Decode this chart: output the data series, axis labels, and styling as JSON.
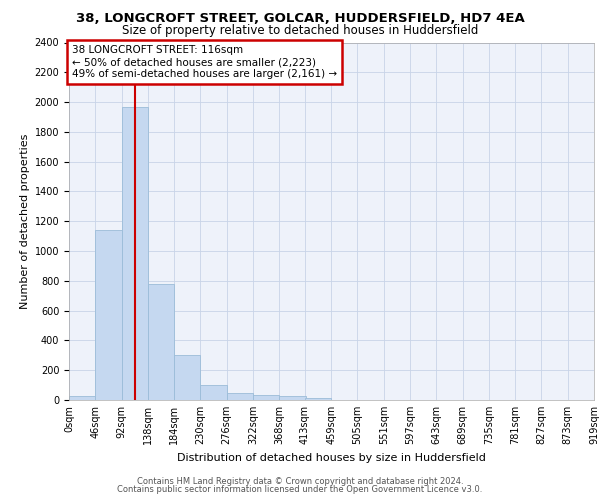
{
  "title1": "38, LONGCROFT STREET, GOLCAR, HUDDERSFIELD, HD7 4EA",
  "title2": "Size of property relative to detached houses in Huddersfield",
  "xlabel": "Distribution of detached houses by size in Huddersfield",
  "ylabel": "Number of detached properties",
  "bin_edges": [
    0,
    46,
    92,
    138,
    184,
    230,
    276,
    322,
    368,
    413,
    459,
    505,
    551,
    597,
    643,
    689,
    735,
    781,
    827,
    873,
    919
  ],
  "bar_heights": [
    30,
    1140,
    1970,
    780,
    300,
    100,
    45,
    35,
    25,
    15,
    0,
    0,
    0,
    0,
    0,
    0,
    0,
    0,
    0,
    0
  ],
  "bar_color": "#c5d8f0",
  "bar_edge_color": "#9bbcd8",
  "grid_color": "#c8d4e8",
  "red_line_x": 116,
  "annotation_title": "38 LONGCROFT STREET: 116sqm",
  "annotation_line1": "← 50% of detached houses are smaller (2,223)",
  "annotation_line2": "49% of semi-detached houses are larger (2,161) →",
  "annotation_box_color": "#cc0000",
  "ylim": [
    0,
    2400
  ],
  "yticks": [
    0,
    200,
    400,
    600,
    800,
    1000,
    1200,
    1400,
    1600,
    1800,
    2000,
    2200,
    2400
  ],
  "tick_labels": [
    "0sqm",
    "46sqm",
    "92sqm",
    "138sqm",
    "184sqm",
    "230sqm",
    "276sqm",
    "322sqm",
    "368sqm",
    "413sqm",
    "459sqm",
    "505sqm",
    "551sqm",
    "597sqm",
    "643sqm",
    "689sqm",
    "735sqm",
    "781sqm",
    "827sqm",
    "873sqm",
    "919sqm"
  ],
  "footer1": "Contains HM Land Registry data © Crown copyright and database right 2024.",
  "footer2": "Contains public sector information licensed under the Open Government Licence v3.0.",
  "bg_color": "#eef2fa",
  "title1_fontsize": 9.5,
  "title2_fontsize": 8.5,
  "ylabel_fontsize": 8,
  "xlabel_fontsize": 8,
  "tick_fontsize": 7,
  "footer_fontsize": 6,
  "ann_fontsize": 7.5
}
